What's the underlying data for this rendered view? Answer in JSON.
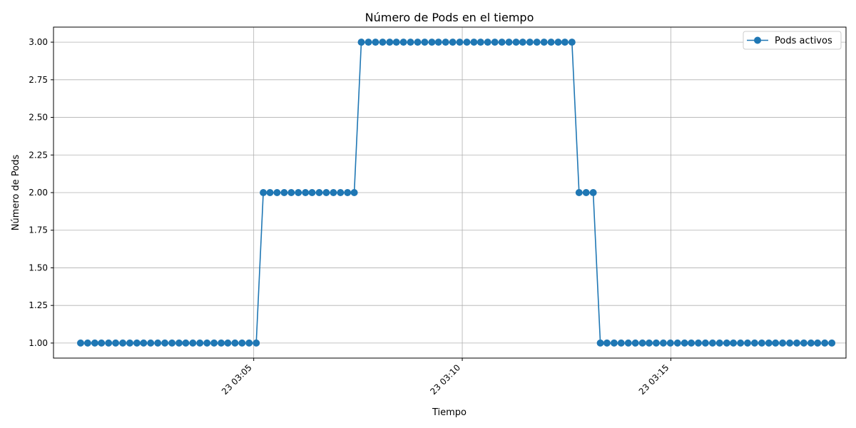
{
  "chart_data": {
    "type": "line",
    "title": "Número de Pods en el tiempo",
    "xlabel": "Tiempo",
    "ylabel": "Número de Pods",
    "x_tick_labels": [
      "23 03:05",
      "23 03:10",
      "23 03:15"
    ],
    "x_tick_values_min": [
      5,
      10,
      15
    ],
    "xlim_min": [
      0.2,
      19.2
    ],
    "ylim": [
      0.9,
      3.1
    ],
    "y_ticks": [
      1.0,
      1.25,
      1.5,
      1.75,
      2.0,
      2.25,
      2.5,
      2.75,
      3.0
    ],
    "y_tick_labels": [
      "1.00",
      "1.25",
      "1.50",
      "1.75",
      "2.00",
      "2.25",
      "2.50",
      "2.75",
      "3.00"
    ],
    "grid": true,
    "legend_position": "top-right",
    "series": [
      {
        "name": "Pods activos",
        "color": "#1f77b4",
        "marker": "circle",
        "x_min": [
          0.85,
          1.02,
          1.19,
          1.35,
          1.52,
          1.69,
          1.86,
          2.03,
          2.2,
          2.36,
          2.53,
          2.7,
          2.87,
          3.04,
          3.21,
          3.37,
          3.54,
          3.71,
          3.88,
          4.05,
          4.22,
          4.38,
          4.55,
          4.72,
          4.89,
          5.06,
          5.23,
          5.39,
          5.56,
          5.73,
          5.9,
          6.07,
          6.24,
          6.4,
          6.57,
          6.74,
          6.91,
          7.08,
          7.25,
          7.41,
          7.58,
          7.75,
          7.92,
          8.09,
          8.26,
          8.42,
          8.59,
          8.76,
          8.93,
          9.1,
          9.27,
          9.43,
          9.6,
          9.77,
          9.94,
          10.11,
          10.28,
          10.44,
          10.61,
          10.78,
          10.95,
          11.12,
          11.29,
          11.45,
          11.62,
          11.79,
          11.96,
          12.13,
          12.3,
          12.46,
          12.63,
          12.8,
          12.97,
          13.14,
          13.31,
          13.47,
          13.64,
          13.81,
          13.98,
          14.15,
          14.32,
          14.48,
          14.65,
          14.82,
          14.99,
          15.16,
          15.33,
          15.49,
          15.66,
          15.83,
          16.0,
          16.17,
          16.34,
          16.5,
          16.67,
          16.84,
          17.01,
          17.18,
          17.35,
          17.51,
          17.68,
          17.85,
          18.02,
          18.19,
          18.36,
          18.52,
          18.69,
          18.86
        ],
        "values": [
          1,
          1,
          1,
          1,
          1,
          1,
          1,
          1,
          1,
          1,
          1,
          1,
          1,
          1,
          1,
          1,
          1,
          1,
          1,
          1,
          1,
          1,
          1,
          1,
          1,
          1,
          2,
          2,
          2,
          2,
          2,
          2,
          2,
          2,
          2,
          2,
          2,
          2,
          2,
          2,
          3,
          3,
          3,
          3,
          3,
          3,
          3,
          3,
          3,
          3,
          3,
          3,
          3,
          3,
          3,
          3,
          3,
          3,
          3,
          3,
          3,
          3,
          3,
          3,
          3,
          3,
          3,
          3,
          3,
          3,
          3,
          2,
          2,
          2,
          1,
          1,
          1,
          1,
          1,
          1,
          1,
          1,
          1,
          1,
          1,
          1,
          1,
          1,
          1,
          1,
          1,
          1,
          1,
          1,
          1,
          1,
          1,
          1,
          1,
          1,
          1,
          1,
          1,
          1,
          1,
          1,
          1,
          1
        ]
      }
    ]
  }
}
